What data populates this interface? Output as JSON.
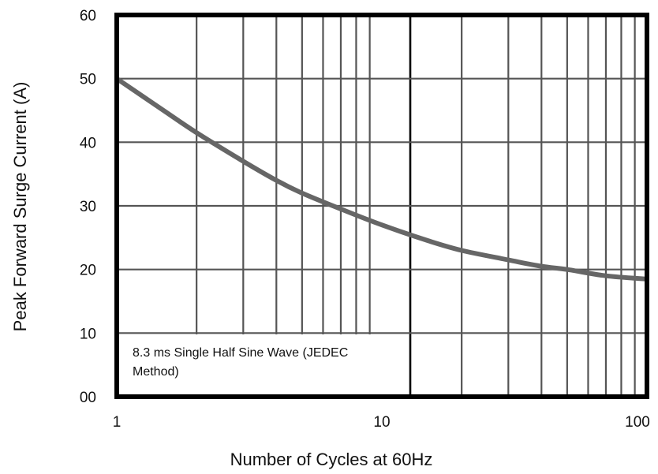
{
  "chart_data": {
    "type": "line",
    "xlabel": "Number of Cycles at 60Hz",
    "ylabel": "Peak Forward Surge Current (A)",
    "x_scale": "log",
    "xlim": [
      1,
      100
    ],
    "ylim": [
      0,
      60
    ],
    "x_ticks": [
      1,
      10,
      100
    ],
    "x_tick_labels": [
      "1",
      "10",
      "100"
    ],
    "y_ticks": [
      0,
      10,
      20,
      30,
      40,
      50,
      60
    ],
    "y_tick_labels": [
      "00",
      "10",
      "20",
      "30",
      "40",
      "50",
      "60"
    ],
    "grid": true,
    "note": {
      "line1": "8.3 ms Single Half Sine Wave (JEDEC",
      "line2": "Method)"
    },
    "series": [
      {
        "color": "#666666",
        "x": [
          1,
          1.5,
          2,
          3,
          4,
          5,
          7,
          10,
          15,
          20,
          30,
          40,
          50,
          70,
          100
        ],
        "y": [
          50,
          45,
          41.5,
          37,
          34,
          32,
          29.5,
          27,
          24.5,
          23,
          21.5,
          20.5,
          20,
          19,
          18.5
        ]
      }
    ],
    "colors": {
      "frame": "#000000",
      "grid": "#555555",
      "series": "#666666"
    }
  }
}
